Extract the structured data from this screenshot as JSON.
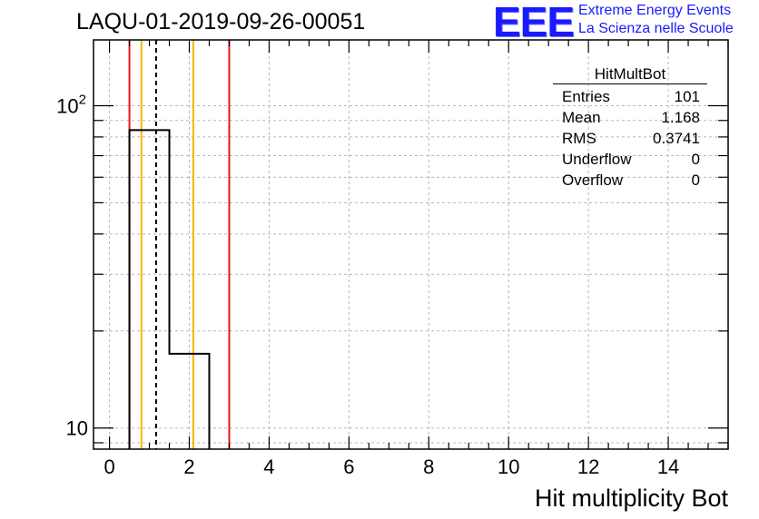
{
  "header": {
    "run_title": "LAQU-01-2019-09-26-00051",
    "logo_text": "EEE",
    "logo_line1": "Extreme Energy Events",
    "logo_line2": "La Scienza nelle Scuole"
  },
  "stats": {
    "title": "HitMultBot",
    "rows": [
      {
        "label": "Entries",
        "value": "101"
      },
      {
        "label": "Mean",
        "value": "1.168"
      },
      {
        "label": "RMS",
        "value": "0.3741"
      },
      {
        "label": "Underflow",
        "value": "0"
      },
      {
        "label": "Overflow",
        "value": "0"
      }
    ]
  },
  "colors": {
    "histogram": "#000000",
    "red_line": "#e8141e",
    "orange_line": "#f5b800",
    "mean_line": "#000000",
    "grid": "#b8b8b8",
    "logo": "#1a1aff"
  },
  "chart_data": {
    "type": "histogram",
    "title": "LAQU-01-2019-09-26-00051",
    "xlabel": "Hit multiplicity Bot",
    "ylabel": "",
    "y_scale": "log",
    "xlim": [
      -0.4,
      15.5
    ],
    "ylim": [
      8.6,
      160
    ],
    "x_ticks": [
      0,
      2,
      4,
      6,
      8,
      10,
      12,
      14
    ],
    "y_major_ticks": [
      {
        "value": 10,
        "label_base": "10",
        "label_exp": ""
      },
      {
        "value": 100,
        "label_base": "10",
        "label_exp": "2"
      }
    ],
    "grid": true,
    "bins": [
      {
        "low": 0.5,
        "high": 1.5,
        "count": 84
      },
      {
        "low": 1.5,
        "high": 2.5,
        "count": 17
      }
    ],
    "vertical_lines": [
      {
        "x": 0.5,
        "style": "red"
      },
      {
        "x": 3.0,
        "style": "red"
      },
      {
        "x": 0.8,
        "style": "orange"
      },
      {
        "x": 2.1,
        "style": "orange"
      },
      {
        "x": 1.168,
        "style": "mean-dashed"
      }
    ]
  }
}
